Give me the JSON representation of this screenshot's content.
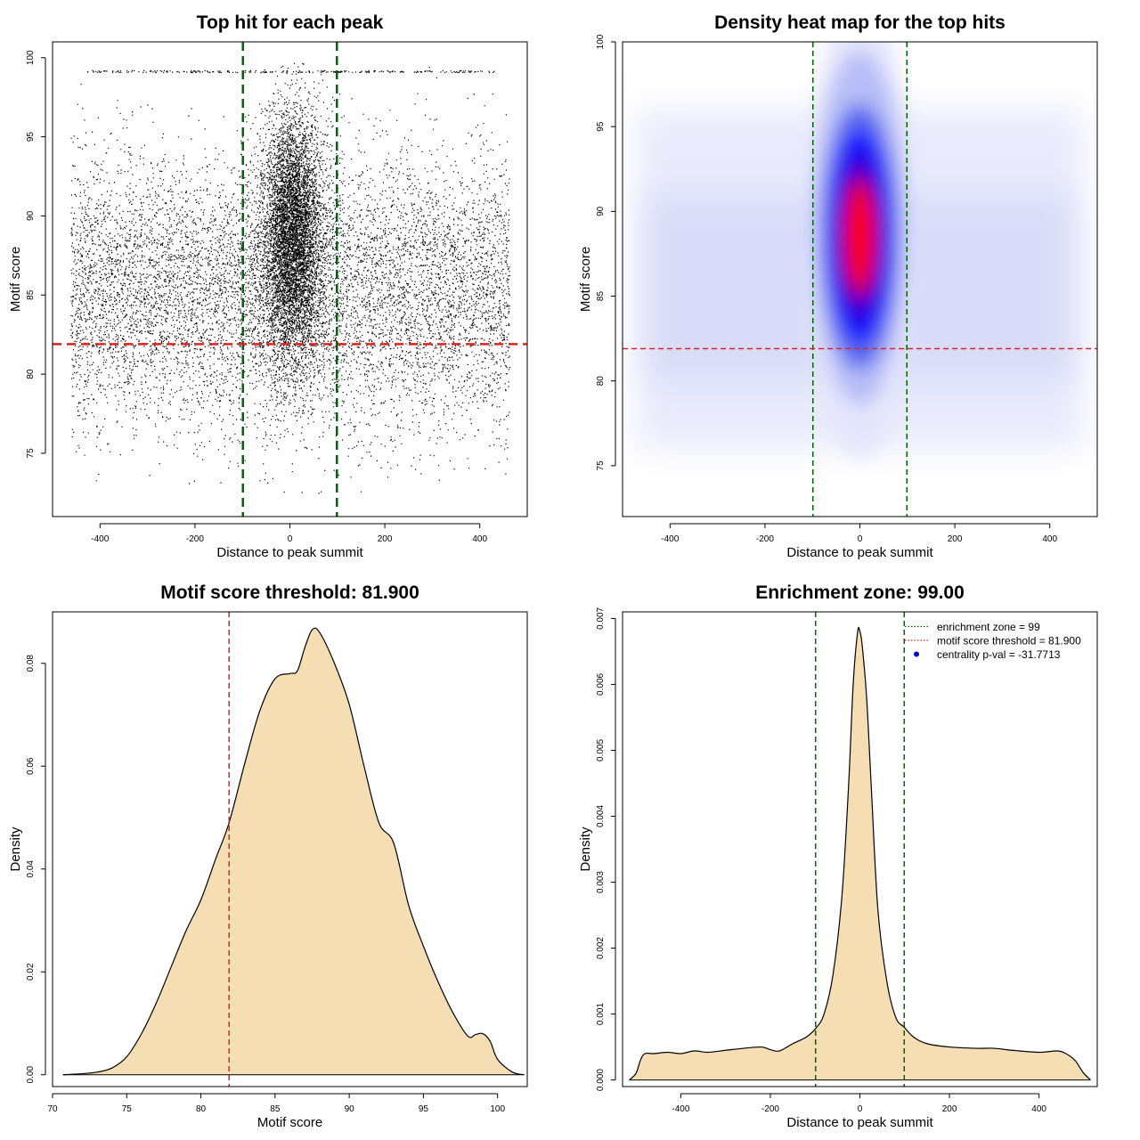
{
  "chart_data": [
    {
      "type": "scatter",
      "title": "Top hit for each peak",
      "xlabel": "Distance to peak summit",
      "ylabel": "Motif score",
      "xlim": [
        -500,
        500
      ],
      "ylim": [
        71,
        101
      ],
      "x_ticks": [
        -400,
        -200,
        0,
        200,
        400
      ],
      "y_ticks": [
        75,
        80,
        85,
        90,
        95,
        100
      ],
      "vlines": [
        -99,
        99
      ],
      "hline": 81.9,
      "line_colors": {
        "vertical": "#006400",
        "horizontal": "#dd2222"
      },
      "point_color": "#000000"
    },
    {
      "type": "heatmap",
      "title": "Density heat map for the top hits",
      "xlabel": "Distance to peak summit",
      "ylabel": "Motif score",
      "xlim": [
        -500,
        500
      ],
      "ylim": [
        72,
        100
      ],
      "x_ticks": [
        -400,
        -200,
        0,
        200,
        400
      ],
      "y_ticks": [
        75,
        80,
        85,
        90,
        95,
        100
      ],
      "hotspot": {
        "x": 0,
        "y": 88.5
      },
      "colors": [
        "#ffffff",
        "#0000ff",
        "#ff0000"
      ],
      "vlines": [
        -99,
        99
      ],
      "hline": 81.9,
      "line_colors": {
        "vertical": "#006400",
        "horizontal": "#dd2222"
      }
    },
    {
      "type": "area",
      "title": "Motif score threshold: 81.900",
      "xlabel": "Motif score",
      "ylabel": "Density",
      "xlim": [
        70,
        102
      ],
      "ylim": [
        0,
        0.09
      ],
      "x_ticks": [
        70,
        75,
        80,
        85,
        90,
        95,
        100
      ],
      "y_ticks": [
        0.0,
        0.02,
        0.04,
        0.06,
        0.08
      ],
      "y_tick_labels": [
        "0.00",
        "0.02",
        "0.04",
        "0.06",
        "0.08"
      ],
      "x": [
        70.7,
        72,
        73,
        74,
        75,
        76,
        77,
        78,
        79,
        80,
        81,
        81.9,
        83,
        84,
        85,
        86,
        86.5,
        87,
        87.5,
        88,
        89,
        90,
        91,
        92,
        93,
        94,
        95,
        96,
        97,
        98,
        98.5,
        99,
        99.5,
        100,
        101,
        101.8
      ],
      "y": [
        0.0,
        0.0002,
        0.0005,
        0.0013,
        0.0035,
        0.008,
        0.014,
        0.021,
        0.028,
        0.034,
        0.042,
        0.049,
        0.061,
        0.071,
        0.077,
        0.078,
        0.0785,
        0.083,
        0.0865,
        0.086,
        0.08,
        0.072,
        0.06,
        0.049,
        0.045,
        0.033,
        0.025,
        0.018,
        0.012,
        0.0075,
        0.0078,
        0.008,
        0.0065,
        0.003,
        0.0005,
        0.0
      ],
      "vline": 81.9,
      "fill_color": "#f5deb3",
      "line_color": "#dd2222"
    },
    {
      "type": "area",
      "title": "Enrichment zone: 99.00",
      "xlabel": "Distance to peak summit",
      "ylabel": "Density",
      "xlim": [
        -530,
        530
      ],
      "ylim": [
        -0.0001,
        0.0071
      ],
      "x_ticks": [
        -400,
        -200,
        0,
        200,
        400
      ],
      "y_ticks": [
        0.0,
        0.001,
        0.002,
        0.003,
        0.004,
        0.005,
        0.006,
        0.007
      ],
      "y_tick_labels": [
        "0.000",
        "0.001",
        "0.002",
        "0.003",
        "0.004",
        "0.005",
        "0.006",
        "0.007"
      ],
      "x": [
        -515,
        -500,
        -490,
        -480,
        -460,
        -430,
        -400,
        -370,
        -340,
        -300,
        -260,
        -220,
        -200,
        -180,
        -150,
        -120,
        -99,
        -80,
        -60,
        -40,
        -25,
        -15,
        -5,
        0,
        5,
        15,
        25,
        40,
        60,
        80,
        99,
        120,
        150,
        200,
        260,
        300,
        340,
        400,
        440,
        460,
        480,
        490,
        500,
        515
      ],
      "y": [
        0.0,
        0.0001,
        0.0003,
        0.0004,
        0.0004,
        0.00042,
        0.0004,
        0.00044,
        0.00042,
        0.00045,
        0.00048,
        0.0005,
        0.00046,
        0.00044,
        0.00055,
        0.00065,
        0.00078,
        0.001,
        0.0016,
        0.0028,
        0.0045,
        0.006,
        0.0068,
        0.0068,
        0.0066,
        0.0058,
        0.0045,
        0.0026,
        0.0015,
        0.00095,
        0.0008,
        0.00065,
        0.00055,
        0.0005,
        0.00048,
        0.00048,
        0.00045,
        0.00042,
        0.00044,
        0.0004,
        0.0003,
        0.0002,
        0.0001,
        0.0
      ],
      "vlines": [
        -99,
        99
      ],
      "fill_color": "#f5deb3",
      "line_color": "#006400",
      "legend": {
        "position": "top-right",
        "entries": [
          {
            "label": "enrichment zone = 99",
            "color": "#006400",
            "style": "dotted-line"
          },
          {
            "label": "motif score threshold = 81.900",
            "color": "#dd2222",
            "style": "dotted-line"
          },
          {
            "label": "centrality p-val = -31.7713",
            "color": "#0000cc",
            "style": "point"
          }
        ]
      }
    }
  ]
}
